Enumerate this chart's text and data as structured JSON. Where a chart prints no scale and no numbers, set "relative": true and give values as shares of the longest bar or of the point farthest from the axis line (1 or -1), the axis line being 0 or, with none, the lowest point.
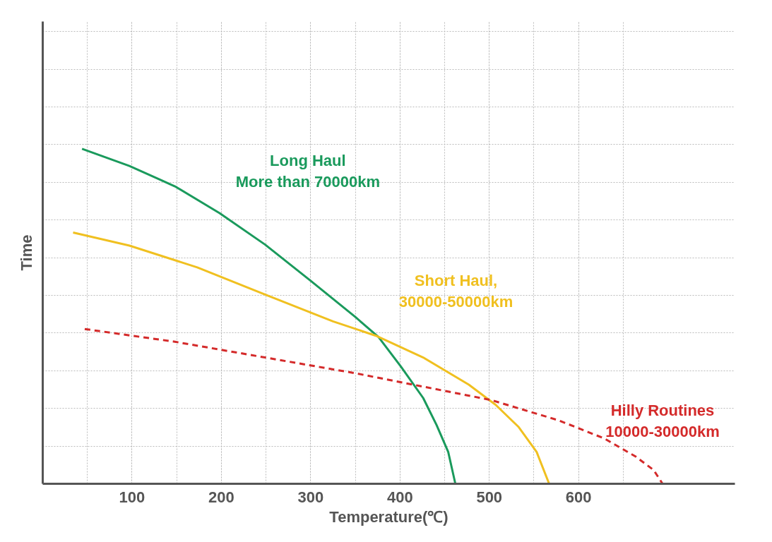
{
  "chart_data": {
    "type": "line",
    "xlabel": "Temperature(℃)",
    "ylabel": "Time",
    "relative": true,
    "grid": true,
    "xlim": [
      0,
      775
    ],
    "xticks": [
      100,
      200,
      300,
      400,
      500,
      600
    ],
    "series": [
      {
        "name": "Long Haul\nMore than 70000km",
        "color": "#1a9a5c",
        "line_style": "solid",
        "x": [
          44,
          97,
          148,
          198,
          249,
          300,
          350,
          376,
          401,
          426,
          441,
          454,
          462
        ],
        "values": [
          1.0,
          0.949,
          0.888,
          0.808,
          0.714,
          0.606,
          0.498,
          0.438,
          0.35,
          0.256,
          0.175,
          0.095,
          0.0
        ]
      },
      {
        "name": "Short Haul,\n30000-50000km",
        "color": "#f0c020",
        "line_style": "solid",
        "x": [
          34,
          97,
          173,
          249,
          325,
          373,
          426,
          477,
          507,
          533,
          553,
          567
        ],
        "values": [
          0.75,
          0.711,
          0.646,
          0.565,
          0.485,
          0.442,
          0.377,
          0.296,
          0.236,
          0.169,
          0.095,
          0.0
        ]
      },
      {
        "name": "Hilly Routines\n10000-30000km",
        "color": "#d42a2a",
        "line_style": "dashed",
        "x": [
          47,
          148,
          249,
          350,
          426,
          502,
          578,
          629,
          664,
          684,
          694
        ],
        "values": [
          0.462,
          0.424,
          0.377,
          0.33,
          0.29,
          0.25,
          0.189,
          0.135,
          0.081,
          0.041,
          0.0
        ]
      }
    ]
  }
}
